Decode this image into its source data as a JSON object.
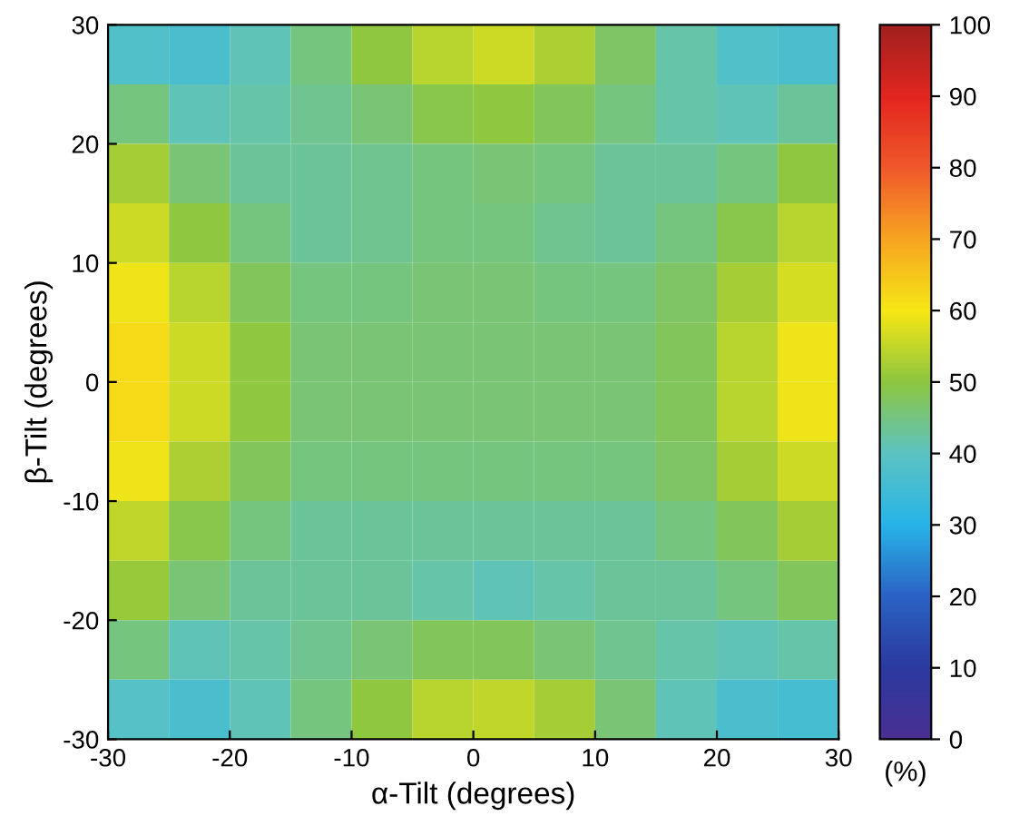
{
  "chart_data": {
    "type": "heatmap",
    "xlabel": "α-Tilt (degrees)",
    "ylabel": "β-Tilt (degrees)",
    "clabel": "(%)",
    "x": [
      -27.5,
      -22.5,
      -17.5,
      -12.5,
      -7.5,
      -2.5,
      2.5,
      7.5,
      12.5,
      17.5,
      22.5,
      27.5
    ],
    "y": [
      27.5,
      22.5,
      17.5,
      12.5,
      7.5,
      2.5,
      -2.5,
      -7.5,
      -12.5,
      -17.5,
      -22.5,
      -27.5
    ],
    "xlim": [
      -30,
      30
    ],
    "ylim": [
      -30,
      30
    ],
    "xticks": [
      -30,
      -20,
      -10,
      0,
      10,
      20,
      30
    ],
    "yticks": [
      -30,
      -20,
      -10,
      0,
      10,
      20,
      30
    ],
    "clim": [
      0,
      100
    ],
    "cticks": [
      0,
      10,
      20,
      30,
      40,
      50,
      60,
      70,
      80,
      90,
      100
    ],
    "cells": [
      [
        38,
        37,
        41,
        45,
        50,
        54,
        56,
        53,
        47,
        42,
        38,
        37
      ],
      [
        45,
        41,
        42,
        44,
        46,
        49,
        50,
        48,
        45,
        42,
        41,
        43
      ],
      [
        52,
        46,
        43,
        43,
        44,
        45,
        46,
        45,
        43,
        43,
        45,
        50
      ],
      [
        56,
        50,
        45,
        43,
        44,
        45,
        45,
        44,
        43,
        45,
        49,
        54
      ],
      [
        59,
        54,
        48,
        45,
        45,
        46,
        46,
        45,
        45,
        47,
        52,
        57
      ],
      [
        62,
        56,
        50,
        46,
        46,
        46,
        46,
        46,
        46,
        48,
        54,
        59
      ],
      [
        62,
        56,
        50,
        46,
        46,
        46,
        46,
        46,
        46,
        48,
        54,
        59
      ],
      [
        59,
        53,
        48,
        45,
        45,
        45,
        45,
        45,
        45,
        47,
        52,
        56
      ],
      [
        55,
        49,
        45,
        43,
        43,
        43,
        43,
        43,
        43,
        45,
        48,
        52
      ],
      [
        51,
        46,
        43,
        43,
        43,
        42,
        41,
        42,
        43,
        43,
        45,
        48
      ],
      [
        45,
        41,
        42,
        44,
        46,
        48,
        48,
        46,
        44,
        42,
        41,
        42
      ],
      [
        39,
        37,
        41,
        45,
        50,
        54,
        55,
        52,
        46,
        41,
        37,
        36
      ]
    ]
  }
}
